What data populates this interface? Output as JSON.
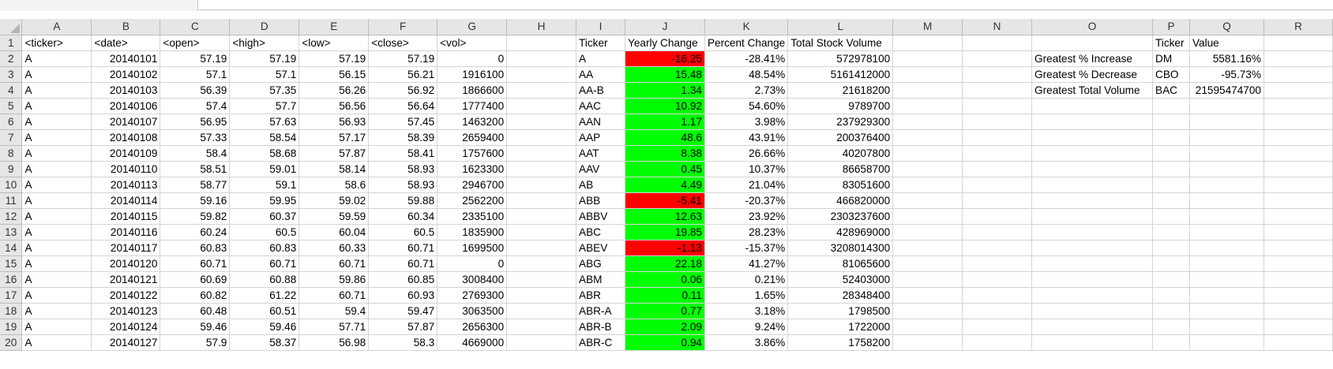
{
  "columns": [
    "A",
    "B",
    "C",
    "D",
    "E",
    "F",
    "G",
    "H",
    "I",
    "J",
    "K",
    "L",
    "M",
    "N",
    "O",
    "P",
    "Q",
    "R"
  ],
  "rows": [
    {
      "n": "1",
      "cells": [
        "<ticker>",
        "<date>",
        "<open>",
        "<high>",
        "<low>",
        "<close>",
        "<vol>",
        "",
        "Ticker",
        "Yearly Change",
        "Percent Change",
        "Total Stock Volume",
        "",
        "",
        "",
        "Ticker",
        "Value",
        ""
      ]
    },
    {
      "n": "2",
      "cells": [
        "A",
        "20140101",
        "57.19",
        "57.19",
        "57.19",
        "57.19",
        "0",
        "",
        "A",
        "-16.25",
        "-28.41%",
        "572978100",
        "",
        "",
        "Greatest % Increase",
        "DM",
        "5581.16%",
        ""
      ]
    },
    {
      "n": "3",
      "cells": [
        "A",
        "20140102",
        "57.1",
        "57.1",
        "56.15",
        "56.21",
        "1916100",
        "",
        "AA",
        "15.48",
        "48.54%",
        "5161412000",
        "",
        "",
        "Greatest % Decrease",
        "CBO",
        "-95.73%",
        ""
      ]
    },
    {
      "n": "4",
      "cells": [
        "A",
        "20140103",
        "56.39",
        "57.35",
        "56.26",
        "56.92",
        "1866600",
        "",
        "AA-B",
        "1.34",
        "2.73%",
        "21618200",
        "",
        "",
        "Greatest Total Volume",
        "BAC",
        "21595474700",
        ""
      ]
    },
    {
      "n": "5",
      "cells": [
        "A",
        "20140106",
        "57.4",
        "57.7",
        "56.56",
        "56.64",
        "1777400",
        "",
        "AAC",
        "10.92",
        "54.60%",
        "9789700",
        "",
        "",
        "",
        "",
        "",
        ""
      ]
    },
    {
      "n": "6",
      "cells": [
        "A",
        "20140107",
        "56.95",
        "57.63",
        "56.93",
        "57.45",
        "1463200",
        "",
        "AAN",
        "1.17",
        "3.98%",
        "237929300",
        "",
        "",
        "",
        "",
        "",
        ""
      ]
    },
    {
      "n": "7",
      "cells": [
        "A",
        "20140108",
        "57.33",
        "58.54",
        "57.17",
        "58.39",
        "2659400",
        "",
        "AAP",
        "48.6",
        "43.91%",
        "200376400",
        "",
        "",
        "",
        "",
        "",
        ""
      ]
    },
    {
      "n": "8",
      "cells": [
        "A",
        "20140109",
        "58.4",
        "58.68",
        "57.87",
        "58.41",
        "1757600",
        "",
        "AAT",
        "8.38",
        "26.66%",
        "40207800",
        "",
        "",
        "",
        "",
        "",
        ""
      ]
    },
    {
      "n": "9",
      "cells": [
        "A",
        "20140110",
        "58.51",
        "59.01",
        "58.14",
        "58.93",
        "1623300",
        "",
        "AAV",
        "0.45",
        "10.37%",
        "86658700",
        "",
        "",
        "",
        "",
        "",
        ""
      ]
    },
    {
      "n": "10",
      "cells": [
        "A",
        "20140113",
        "58.77",
        "59.1",
        "58.6",
        "58.93",
        "2946700",
        "",
        "AB",
        "4.49",
        "21.04%",
        "83051600",
        "",
        "",
        "",
        "",
        "",
        ""
      ]
    },
    {
      "n": "11",
      "cells": [
        "A",
        "20140114",
        "59.16",
        "59.95",
        "59.02",
        "59.88",
        "2562200",
        "",
        "ABB",
        "-5.41",
        "-20.37%",
        "466820000",
        "",
        "",
        "",
        "",
        "",
        ""
      ]
    },
    {
      "n": "12",
      "cells": [
        "A",
        "20140115",
        "59.82",
        "60.37",
        "59.59",
        "60.34",
        "2335100",
        "",
        "ABBV",
        "12.63",
        "23.92%",
        "2303237600",
        "",
        "",
        "",
        "",
        "",
        ""
      ]
    },
    {
      "n": "13",
      "cells": [
        "A",
        "20140116",
        "60.24",
        "60.5",
        "60.04",
        "60.5",
        "1835900",
        "",
        "ABC",
        "19.85",
        "28.23%",
        "428969000",
        "",
        "",
        "",
        "",
        "",
        ""
      ]
    },
    {
      "n": "14",
      "cells": [
        "A",
        "20140117",
        "60.83",
        "60.83",
        "60.33",
        "60.71",
        "1699500",
        "",
        "ABEV",
        "-1.13",
        "-15.37%",
        "3208014300",
        "",
        "",
        "",
        "",
        "",
        ""
      ]
    },
    {
      "n": "15",
      "cells": [
        "A",
        "20140120",
        "60.71",
        "60.71",
        "60.71",
        "60.71",
        "0",
        "",
        "ABG",
        "22.18",
        "41.27%",
        "81065600",
        "",
        "",
        "",
        "",
        "",
        ""
      ]
    },
    {
      "n": "16",
      "cells": [
        "A",
        "20140121",
        "60.69",
        "60.88",
        "59.86",
        "60.85",
        "3008400",
        "",
        "ABM",
        "0.06",
        "0.21%",
        "52403000",
        "",
        "",
        "",
        "",
        "",
        ""
      ]
    },
    {
      "n": "17",
      "cells": [
        "A",
        "20140122",
        "60.82",
        "61.22",
        "60.71",
        "60.93",
        "2769300",
        "",
        "ABR",
        "0.11",
        "1.65%",
        "28348400",
        "",
        "",
        "",
        "",
        "",
        ""
      ]
    },
    {
      "n": "18",
      "cells": [
        "A",
        "20140123",
        "60.48",
        "60.51",
        "59.4",
        "59.47",
        "3063500",
        "",
        "ABR-A",
        "0.77",
        "3.18%",
        "1798500",
        "",
        "",
        "",
        "",
        "",
        ""
      ]
    },
    {
      "n": "19",
      "cells": [
        "A",
        "20140124",
        "59.46",
        "59.46",
        "57.71",
        "57.87",
        "2656300",
        "",
        "ABR-B",
        "2.09",
        "9.24%",
        "1722000",
        "",
        "",
        "",
        "",
        "",
        ""
      ]
    },
    {
      "n": "20",
      "cells": [
        "A",
        "20140127",
        "57.9",
        "58.37",
        "56.98",
        "58.3",
        "4669000",
        "",
        "ABR-C",
        "0.94",
        "3.86%",
        "1758200",
        "",
        "",
        "",
        "",
        "",
        ""
      ]
    }
  ],
  "colors": {
    "positive_fill": "#00ff00",
    "negative_fill": "#ff0000"
  }
}
